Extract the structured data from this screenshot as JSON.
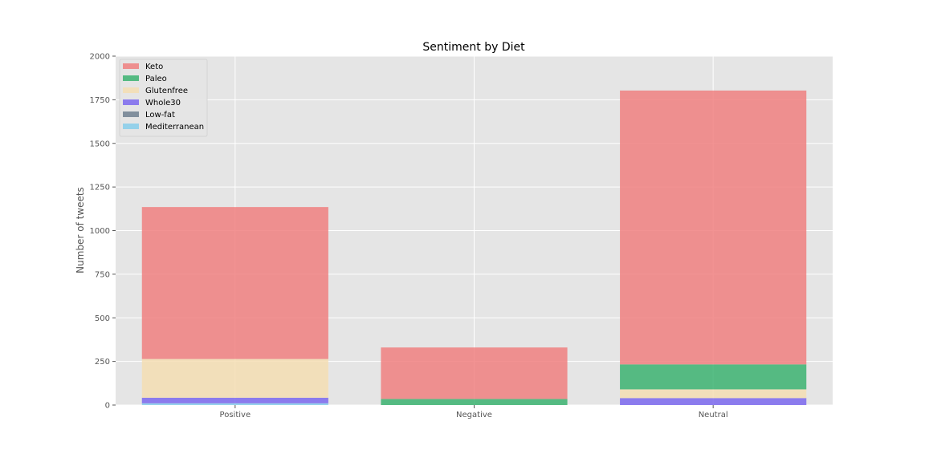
{
  "chart_data": {
    "type": "bar",
    "stacked": true,
    "title": "Sentiment by Diet",
    "xlabel": "",
    "ylabel": "Number of tweets",
    "categories": [
      "Positive",
      "Negative",
      "Neutral"
    ],
    "ylim": [
      0,
      2000
    ],
    "yticks": [
      0,
      250,
      500,
      750,
      1000,
      1250,
      1500,
      1750,
      2000
    ],
    "grid": true,
    "legend_position": "top-left",
    "series": [
      {
        "name": "Mediterranean",
        "color": "#87ceeb",
        "values": [
          10,
          0,
          0
        ]
      },
      {
        "name": "Low-fat",
        "color": "#708090",
        "values": [
          0,
          0,
          0
        ]
      },
      {
        "name": "Whole30",
        "color": "#7b68ee",
        "values": [
          32,
          0,
          40
        ]
      },
      {
        "name": "Glutenfree",
        "color": "#f5deb3",
        "values": [
          222,
          0,
          50
        ]
      },
      {
        "name": "Paleo",
        "color": "#3cb371",
        "values": [
          0,
          35,
          143
        ]
      },
      {
        "name": "Keto",
        "color": "#f08080",
        "values": [
          871,
          295,
          1570
        ]
      }
    ],
    "legend_order": [
      "Keto",
      "Paleo",
      "Glutenfree",
      "Whole30",
      "Low-fat",
      "Mediterranean"
    ]
  }
}
